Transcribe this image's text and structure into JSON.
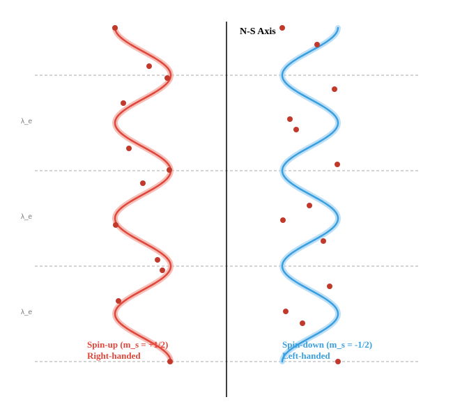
{
  "axis": {
    "title": "N-S Axis"
  },
  "wavelength_label": "λ_e",
  "colors": {
    "axis": "#000000",
    "guide": "#aaaaaa",
    "spin_up": "#e0463a",
    "spin_up_glow": "#f5b5ae",
    "spin_up_dot": "#c0392b",
    "spin_down": "#3a9fe0",
    "spin_down_glow": "#b3dbf5",
    "spin_down_dot": "#c0392b"
  },
  "spin_up": {
    "caption_line1": "Spin-up (m_s = +1/2)",
    "caption_line2": "Right-handed"
  },
  "spin_down": {
    "caption_line1": "Spin-down (m_s = -1/2)",
    "caption_line2": "Left-handed"
  }
}
